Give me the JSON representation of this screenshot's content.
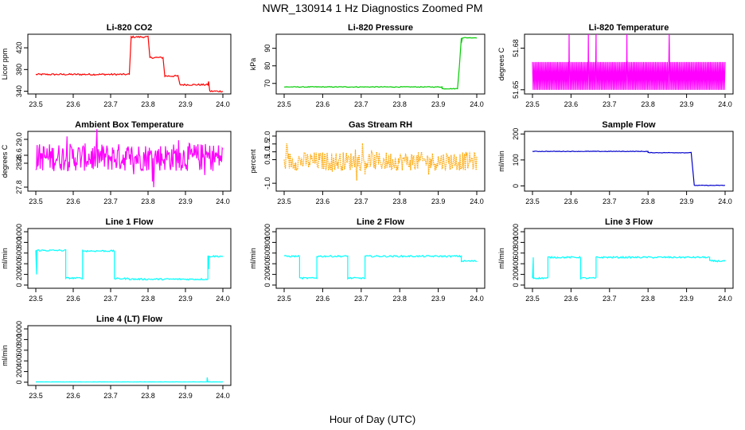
{
  "figure": {
    "title": "NWR_130914  1 Hz Diagnostics Zoomed PM",
    "xlabel": "Hour of Day (UTC)"
  },
  "chart_data": [
    {
      "type": "line",
      "title": "Li-820 CO2",
      "ylabel": "Licor ppm",
      "color": "#ff0000",
      "xlim": [
        23.5,
        24.0
      ],
      "ylim": [
        335,
        445
      ],
      "xticks": [
        "23.5",
        "23.6",
        "23.7",
        "23.8",
        "23.9",
        "24.0"
      ],
      "yticks": [
        340,
        380,
        420
      ],
      "yticklabels": [
        "340",
        "380",
        "420"
      ],
      "series": [
        {
          "segments": [
            [
              23.5,
              23.75,
              371
            ],
            [
              23.755,
              23.8,
              440
            ],
            [
              23.805,
              23.84,
              402
            ],
            [
              23.845,
              23.88,
              368
            ],
            [
              23.885,
              23.96,
              352
            ],
            [
              23.965,
              24.0,
              340
            ]
          ],
          "noise": 1.5,
          "spikes": [
            [
              23.962,
              358
            ]
          ]
        }
      ]
    },
    {
      "type": "line",
      "title": "Li-820 Pressure",
      "ylabel": "kPa",
      "color": "#00cc00",
      "xlim": [
        23.5,
        24.0
      ],
      "ylim": [
        64,
        98
      ],
      "xticks": [
        "23.5",
        "23.6",
        "23.7",
        "23.8",
        "23.9",
        "24.0"
      ],
      "yticks": [
        70,
        80,
        90
      ],
      "yticklabels": [
        "70",
        "80",
        "90"
      ],
      "series": [
        {
          "segments": [
            [
              23.5,
              23.91,
              68
            ],
            [
              23.91,
              23.95,
              67
            ],
            [
              23.96,
              24.0,
              96
            ]
          ],
          "ramp": [
            [
              23.95,
              67
            ],
            [
              23.955,
              80
            ],
            [
              23.96,
              93
            ]
          ],
          "noise": 0.2
        }
      ]
    },
    {
      "type": "line",
      "title": "Li-820 Temperature",
      "ylabel": "degrees C",
      "color": "#ff00ff",
      "xlim": [
        23.5,
        24.0
      ],
      "ylim": [
        51.647,
        51.69
      ],
      "xticks": [
        "23.5",
        "23.6",
        "23.7",
        "23.8",
        "23.9",
        "24.0"
      ],
      "yticks": [
        51.65,
        51.68
      ],
      "yticklabels": [
        "51.65",
        "51.68"
      ],
      "series": [
        {
          "oscillate": [
            51.65,
            51.67
          ],
          "spikes": [
            [
              23.595,
              51.69
            ],
            [
              23.645,
              51.69
            ],
            [
              23.665,
              51.69
            ],
            [
              23.745,
              51.69
            ],
            [
              23.855,
              51.69
            ]
          ]
        }
      ]
    },
    {
      "type": "line",
      "title": "Ambient Box Temperature",
      "ylabel": "degrees C",
      "color": "#ff00ff",
      "xlim": [
        23.5,
        24.0
      ],
      "ylim": [
        27.7,
        29.2
      ],
      "xticks": [
        "23.5",
        "23.6",
        "23.7",
        "23.8",
        "23.9",
        "24.0"
      ],
      "yticks": [
        27.8,
        28.4,
        28.6,
        29.0
      ],
      "yticklabels": [
        "27.8",
        "28.4",
        "28.6",
        "29.0"
      ],
      "series": [
        {
          "noiseband": [
            28.2,
            28.9
          ],
          "center": 28.55
        }
      ]
    },
    {
      "type": "line",
      "title": "Gas Stream RH",
      "ylabel": "percent",
      "color": "#ffa500",
      "xlim": [
        23.5,
        24.0
      ],
      "ylim": [
        -1.5,
        2.3
      ],
      "xticks": [
        "23.5",
        "23.6",
        "23.7",
        "23.8",
        "23.9",
        "24.0"
      ],
      "yticks": [
        -1.0,
        0.5,
        1.0,
        1.5,
        2.0
      ],
      "yticklabels": [
        "-1.0",
        "0.5",
        "1.0",
        "1.5",
        "2.0"
      ],
      "series": [
        {
          "noiseband": [
            -0.2,
            1.0
          ],
          "center": 0.4,
          "dotted": true
        }
      ]
    },
    {
      "type": "line",
      "title": "Sample Flow",
      "ylabel": "ml/min",
      "color": "#0000cc",
      "xlim": [
        23.5,
        24.0
      ],
      "ylim": [
        -20,
        210
      ],
      "xticks": [
        "23.5",
        "23.6",
        "23.7",
        "23.8",
        "23.9",
        "24.0"
      ],
      "yticks": [
        0,
        100,
        200
      ],
      "yticklabels": [
        "0",
        "100",
        "200"
      ],
      "series": [
        {
          "segments": [
            [
              23.5,
              23.8,
              133
            ],
            [
              23.8,
              23.912,
              128
            ],
            [
              23.92,
              24.0,
              2
            ]
          ],
          "ramp": [
            [
              23.912,
              128
            ],
            [
              23.92,
              2
            ]
          ],
          "noise": 1
        }
      ]
    },
    {
      "type": "line",
      "title": "Line 1 Flow",
      "ylabel": "ml/min",
      "color": "#00ffff",
      "xlim": [
        23.5,
        24.0
      ],
      "ylim": [
        -60,
        1060
      ],
      "xticks": [
        "23.5",
        "23.6",
        "23.7",
        "23.8",
        "23.9",
        "24.0"
      ],
      "yticks": [
        0,
        200,
        400,
        600,
        800,
        1000
      ],
      "yticklabels": [
        "0",
        "200",
        "400",
        "600",
        "800",
        "1000"
      ],
      "series": [
        {
          "segments": [
            [
              23.5,
              23.58,
              650
            ],
            [
              23.58,
              23.625,
              130
            ],
            [
              23.625,
              23.71,
              640
            ],
            [
              23.71,
              23.75,
              120
            ],
            [
              23.75,
              23.96,
              110
            ],
            [
              23.96,
              24.0,
              540
            ]
          ],
          "noise": 15,
          "spikes": [
            [
              23.502,
              200
            ],
            [
              23.962,
              300
            ]
          ]
        }
      ]
    },
    {
      "type": "line",
      "title": "Line 2 Flow",
      "ylabel": "ml/min",
      "color": "#00ffff",
      "xlim": [
        23.5,
        24.0
      ],
      "ylim": [
        -60,
        1060
      ],
      "xticks": [
        "23.5",
        "23.6",
        "23.7",
        "23.8",
        "23.9",
        "24.0"
      ],
      "yticks": [
        0,
        200,
        400,
        600,
        800,
        1000
      ],
      "yticklabels": [
        "0",
        "200",
        "400",
        "600",
        "800",
        "1000"
      ],
      "series": [
        {
          "segments": [
            [
              23.5,
              23.54,
              540
            ],
            [
              23.54,
              23.585,
              130
            ],
            [
              23.585,
              23.665,
              540
            ],
            [
              23.665,
              23.71,
              130
            ],
            [
              23.71,
              23.96,
              540
            ],
            [
              23.96,
              24.0,
              450
            ]
          ],
          "noise": 15
        }
      ]
    },
    {
      "type": "line",
      "title": "Line 3 Flow",
      "ylabel": "ml/min",
      "color": "#00ffff",
      "xlim": [
        23.5,
        24.0
      ],
      "ylim": [
        -60,
        1060
      ],
      "xticks": [
        "23.5",
        "23.6",
        "23.7",
        "23.8",
        "23.9",
        "24.0"
      ],
      "yticks": [
        0,
        200,
        400,
        600,
        800,
        1000
      ],
      "yticklabels": [
        "0",
        "200",
        "400",
        "600",
        "800",
        "1000"
      ],
      "series": [
        {
          "segments": [
            [
              23.5,
              23.54,
              130
            ],
            [
              23.54,
              23.625,
              520
            ],
            [
              23.625,
              23.665,
              130
            ],
            [
              23.665,
              23.96,
              520
            ],
            [
              23.96,
              24.0,
              450
            ]
          ],
          "noise": 15,
          "spikes": [
            [
              23.502,
              520
            ]
          ]
        }
      ]
    },
    {
      "type": "line",
      "title": "Line 4 (LT) Flow",
      "ylabel": "ml/min",
      "color": "#00ffff",
      "xlim": [
        23.5,
        24.0
      ],
      "ylim": [
        -60,
        1060
      ],
      "xticks": [
        "23.5",
        "23.6",
        "23.7",
        "23.8",
        "23.9",
        "24.0"
      ],
      "yticks": [
        0,
        200,
        400,
        600,
        800,
        1000
      ],
      "yticklabels": [
        "0",
        "200",
        "400",
        "600",
        "800",
        "1000"
      ],
      "series": [
        {
          "segments": [
            [
              23.5,
              24.0,
              5
            ]
          ],
          "noise": 2,
          "spikes": [
            [
              23.958,
              90
            ]
          ]
        }
      ]
    }
  ]
}
